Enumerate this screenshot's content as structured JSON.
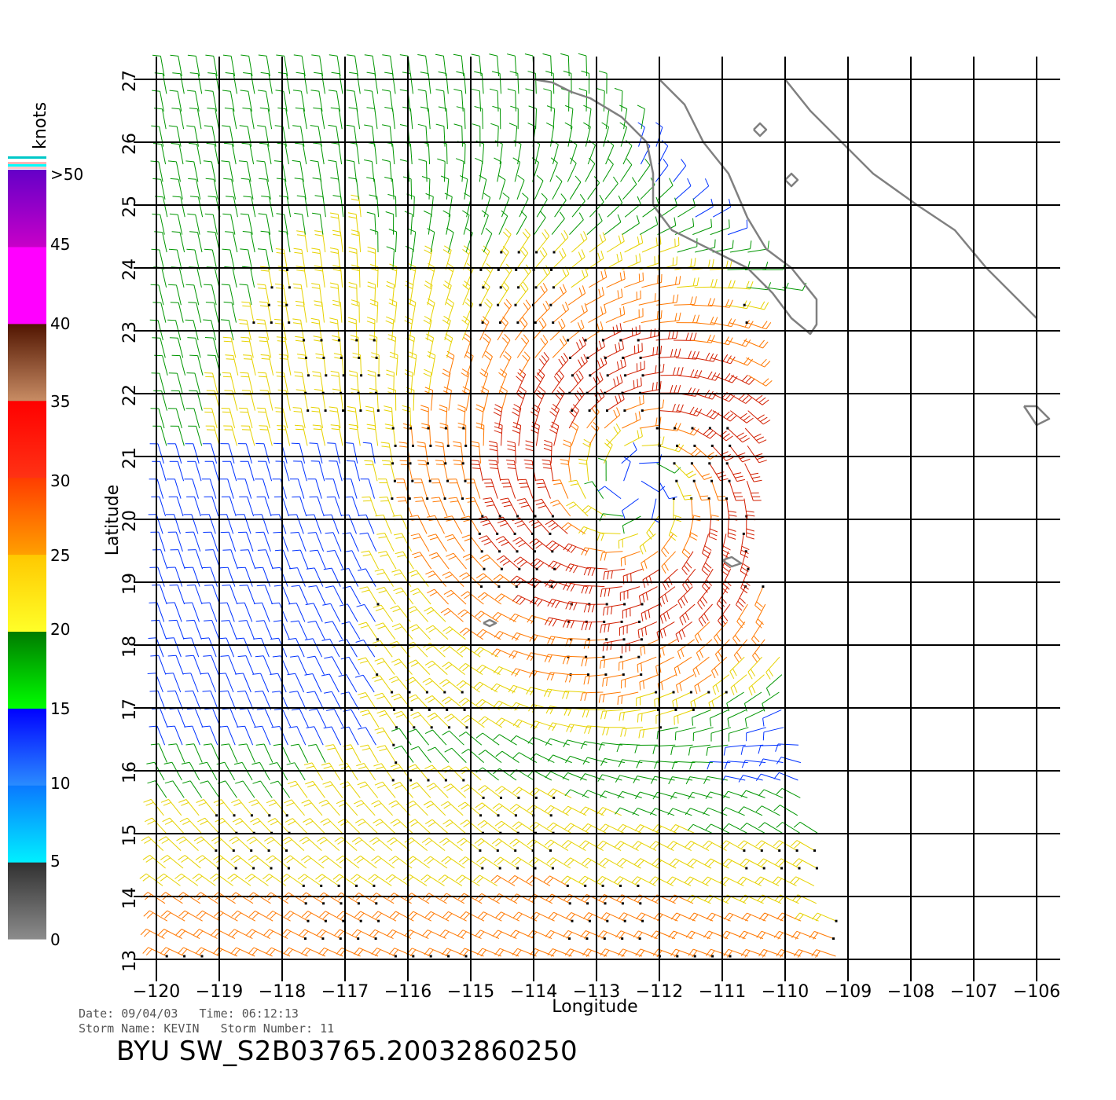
{
  "meta": {
    "date_label": "Date:",
    "date_value": "09/04/03",
    "time_label": "Time:",
    "time_value": "06:12:13",
    "storm_name_label": "Storm Name:",
    "storm_name_value": "KEVIN",
    "storm_number_label": "Storm Number:",
    "storm_number_value": "11",
    "product_title": "BYU SW_S2B03765.20032860250"
  },
  "axes": {
    "xlabel": "Longitude",
    "ylabel": "Latitude",
    "x_ticks": [
      -120,
      -119,
      -118,
      -117,
      -116,
      -115,
      -114,
      -113,
      -112,
      -111,
      -110,
      -109,
      -108,
      -107,
      -106
    ],
    "y_ticks": [
      13,
      14,
      15,
      16,
      17,
      18,
      19,
      20,
      21,
      22,
      23,
      24,
      25,
      26,
      27
    ],
    "xlim": [
      -120,
      -106
    ],
    "ylim": [
      13,
      27
    ],
    "grid": true
  },
  "colorbar": {
    "unit_label": "knots",
    "tick_labels": [
      "0",
      "5",
      "10",
      "15",
      "20",
      "25",
      "30",
      "35",
      "40",
      "45",
      ">50"
    ],
    "bands": [
      {
        "from": 0,
        "to": 5,
        "top_color": "#303030",
        "bottom_color": "#8c8c8c"
      },
      {
        "from": 5,
        "to": 10,
        "top_color": "#0a78ff",
        "bottom_color": "#00f0ff"
      },
      {
        "from": 10,
        "to": 15,
        "top_color": "#0000ff",
        "bottom_color": "#2a8cff"
      },
      {
        "from": 15,
        "to": 20,
        "top_color": "#007a00",
        "bottom_color": "#00ff00"
      },
      {
        "from": 20,
        "to": 25,
        "top_color": "#ffc800",
        "bottom_color": "#ffff28"
      },
      {
        "from": 25,
        "to": 30,
        "top_color": "#ff3c00",
        "bottom_color": "#ffa000"
      },
      {
        "from": 30,
        "to": 35,
        "top_color": "#ff0000",
        "bottom_color": "#ff3214"
      },
      {
        "from": 35,
        "to": 40,
        "top_color": "#501400",
        "bottom_color": "#c88c64"
      },
      {
        "from": 40,
        "to": 45,
        "top_color": "#ff00ff",
        "bottom_color": "#ff00ff"
      },
      {
        "from": 45,
        "to": 50,
        "top_color": "#6400c8",
        "bottom_color": "#c800c8"
      }
    ]
  },
  "wind_colors": {
    "calm": "#404040",
    "light": "#00d2ff",
    "moderate": "#0032ff",
    "fresh": "#009600",
    "strong": "#e6d200",
    "gale": "#ff7800",
    "storm": "#d21e00",
    "violent": "#b400c8"
  },
  "storm_center": {
    "lon": -112.4,
    "lat": 20.5,
    "name": "KEVIN"
  },
  "coastline_color": "#808080"
}
